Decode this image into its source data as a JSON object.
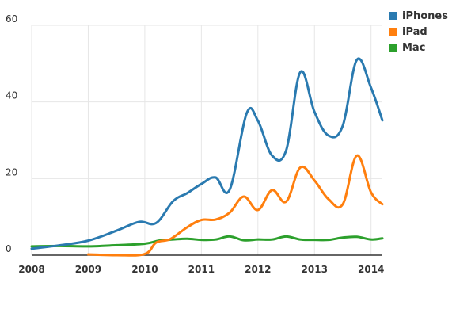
{
  "chart_data": {
    "type": "line",
    "title": "",
    "xlabel": "",
    "ylabel": "",
    "x_ticks": [
      "2008",
      "2009",
      "2010",
      "2011",
      "2012",
      "2013",
      "2014"
    ],
    "y_ticks": [
      "0",
      "20",
      "40",
      "60"
    ],
    "xlim": [
      2008.0,
      2014.2
    ],
    "ylim": [
      0,
      60
    ],
    "grid": "vertical and horizontal",
    "legend_position": "top-right",
    "series": [
      {
        "name": "iPhones",
        "color": "#2a7ab0",
        "points": [
          [
            2008.0,
            1.7
          ],
          [
            2008.5,
            2.6
          ],
          [
            2009.0,
            3.8
          ],
          [
            2009.5,
            6.4
          ],
          [
            2009.9,
            8.7
          ],
          [
            2010.2,
            8.4
          ],
          [
            2010.5,
            14.1
          ],
          [
            2010.75,
            16.2
          ],
          [
            2011.0,
            18.6
          ],
          [
            2011.25,
            20.3
          ],
          [
            2011.5,
            17.1
          ],
          [
            2011.8,
            37.0
          ],
          [
            2012.0,
            35.1
          ],
          [
            2012.25,
            26.0
          ],
          [
            2012.5,
            27.4
          ],
          [
            2012.75,
            47.8
          ],
          [
            2013.0,
            37.4
          ],
          [
            2013.25,
            31.2
          ],
          [
            2013.5,
            33.8
          ],
          [
            2013.75,
            51.0
          ],
          [
            2014.0,
            43.7
          ],
          [
            2014.2,
            35.2
          ]
        ]
      },
      {
        "name": "iPad",
        "color": "#ff7f0e",
        "points": [
          [
            2009.0,
            0.2
          ],
          [
            2009.5,
            0.0
          ],
          [
            2010.0,
            0.3
          ],
          [
            2010.2,
            3.3
          ],
          [
            2010.45,
            4.2
          ],
          [
            2010.75,
            7.3
          ],
          [
            2011.0,
            9.2
          ],
          [
            2011.25,
            9.3
          ],
          [
            2011.5,
            11.1
          ],
          [
            2011.75,
            15.3
          ],
          [
            2012.0,
            11.8
          ],
          [
            2012.25,
            17.0
          ],
          [
            2012.5,
            14.0
          ],
          [
            2012.75,
            22.9
          ],
          [
            2013.0,
            19.5
          ],
          [
            2013.25,
            14.6
          ],
          [
            2013.5,
            13.3
          ],
          [
            2013.75,
            26.0
          ],
          [
            2014.0,
            16.4
          ],
          [
            2014.2,
            13.3
          ]
        ]
      },
      {
        "name": "Mac",
        "color": "#2ca02c",
        "points": [
          [
            2008.0,
            2.3
          ],
          [
            2008.5,
            2.4
          ],
          [
            2009.0,
            2.3
          ],
          [
            2009.5,
            2.6
          ],
          [
            2010.0,
            3.0
          ],
          [
            2010.25,
            3.8
          ],
          [
            2010.5,
            4.1
          ],
          [
            2010.75,
            4.3
          ],
          [
            2011.0,
            4.0
          ],
          [
            2011.25,
            4.1
          ],
          [
            2011.5,
            4.9
          ],
          [
            2011.75,
            3.9
          ],
          [
            2012.0,
            4.1
          ],
          [
            2012.25,
            4.1
          ],
          [
            2012.5,
            4.9
          ],
          [
            2012.75,
            4.1
          ],
          [
            2013.0,
            4.0
          ],
          [
            2013.25,
            4.0
          ],
          [
            2013.5,
            4.6
          ],
          [
            2013.75,
            4.8
          ],
          [
            2014.0,
            4.1
          ],
          [
            2014.2,
            4.4
          ]
        ]
      }
    ]
  }
}
